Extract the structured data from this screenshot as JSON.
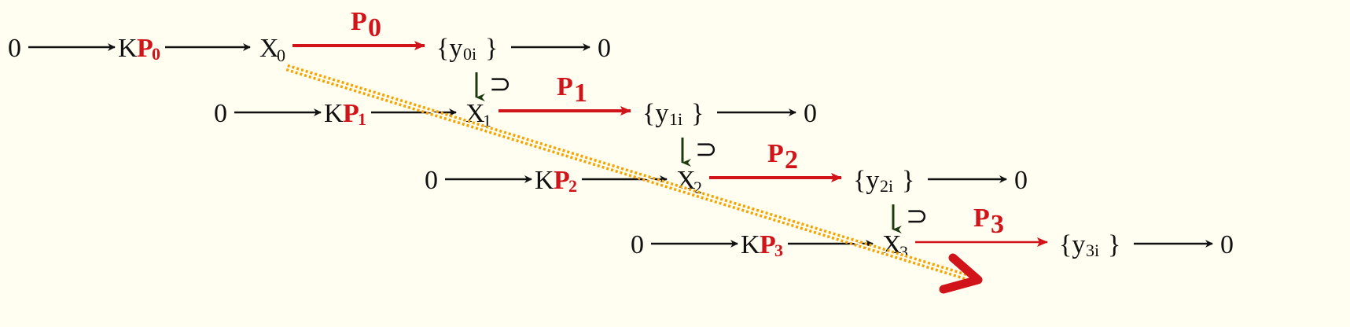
{
  "colors": {
    "map_arrow": "#d0141a",
    "text": "#111111",
    "diagonal_dots": "#f5a300",
    "inclusion_arrow": "#1c3a10",
    "background": "#fffef0"
  },
  "rows": [
    {
      "zero_left": "0",
      "kernel_k": "K",
      "kernel_p": "P",
      "kernel_sub": "0",
      "x": "X",
      "x_sub": "0",
      "map_label": "P",
      "map_sub": "0",
      "y_open": "{y",
      "y_sub": "0i",
      "y_close": "}",
      "zero_right": "0"
    },
    {
      "zero_left": "0",
      "kernel_k": "K",
      "kernel_p": "P",
      "kernel_sub": "1",
      "x": "X",
      "x_sub": "1",
      "map_label": "P",
      "map_sub": "1",
      "y_open": "{y",
      "y_sub": "1i",
      "y_close": "}",
      "zero_right": "0"
    },
    {
      "zero_left": "0",
      "kernel_k": "K",
      "kernel_p": "P",
      "kernel_sub": "2",
      "x": "X",
      "x_sub": "2",
      "map_label": "P",
      "map_sub": "2",
      "y_open": "{y",
      "y_sub": "2i",
      "y_close": "}",
      "zero_right": "0"
    },
    {
      "zero_left": "0",
      "kernel_k": "K",
      "kernel_p": "P",
      "kernel_sub": "3",
      "x": "X",
      "x_sub": "3",
      "map_label": "P",
      "map_sub": "3",
      "y_open": "{y",
      "y_sub": "3i",
      "y_close": "}",
      "zero_right": "0"
    }
  ],
  "inclusion_symbol": "⊃"
}
